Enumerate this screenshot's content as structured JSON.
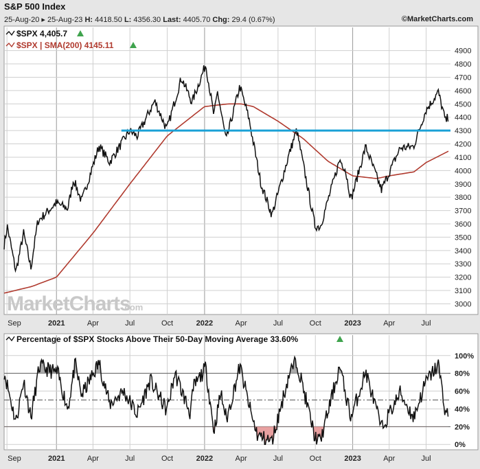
{
  "header": {
    "title": "S&P 500 Index",
    "date_range": "25-Aug-20 ▸ 25-Aug-23",
    "hi_label": "H:",
    "hi": "4418.50",
    "lo_label": "L:",
    "lo": "4356.30",
    "last_label": "Last:",
    "last": "4405.70",
    "chg_label": "Chg:",
    "chg": "29.4 (0.67%)",
    "copyright": "©MarketCharts.com"
  },
  "watermark": "MarketCharts",
  "watermark_suffix": ".com",
  "colors": {
    "price": "#111111",
    "sma": "#b03a2e",
    "hline": "#1aa1d6",
    "grid": "#cfcfcf",
    "up": "#3fa34d",
    "overbought_fill": "#a9a9a9",
    "oversold_fill": "#e8a0a0"
  },
  "chart_data": [
    {
      "type": "line",
      "legend": [
        {
          "label": "$SPX 4,405.7",
          "color": "#111111"
        },
        {
          "label": "$SPX | SMA(200) 4145.11",
          "color": "#b03a2e"
        }
      ],
      "x_tick_labels": [
        "Sep",
        "2021",
        "Apr",
        "Jul",
        "Oct",
        "2022",
        "Apr",
        "Jul",
        "Oct",
        "2023",
        "Apr",
        "Jul"
      ],
      "y_tick_labels": [
        "3000",
        "3100",
        "3200",
        "3300",
        "3400",
        "3500",
        "3600",
        "3700",
        "3800",
        "3900",
        "4000",
        "4100",
        "4200",
        "4300",
        "4400",
        "4500",
        "4600",
        "4700",
        "4800",
        "4900"
      ],
      "ylim": [
        2920,
        4960
      ],
      "horizontal_line": 4300,
      "series": [
        {
          "name": "$SPX",
          "x": [
            "2020-08-25",
            "2020-09-02",
            "2020-09-23",
            "2020-10-12",
            "2020-10-30",
            "2020-11-16",
            "2020-12-31",
            "2021-01-29",
            "2021-02-12",
            "2021-03-04",
            "2021-04-16",
            "2021-05-12",
            "2021-06-30",
            "2021-07-19",
            "2021-08-31",
            "2021-09-30",
            "2021-11-05",
            "2021-12-01",
            "2022-01-04",
            "2022-01-24",
            "2022-02-02",
            "2022-02-23",
            "2022-03-29",
            "2022-04-20",
            "2022-05-20",
            "2022-06-16",
            "2022-07-29",
            "2022-08-16",
            "2022-09-30",
            "2022-10-13",
            "2022-11-30",
            "2022-12-13",
            "2022-12-28",
            "2023-02-02",
            "2023-03-13",
            "2023-04-28",
            "2023-05-31",
            "2023-06-30",
            "2023-07-31",
            "2023-08-18",
            "2023-08-25"
          ],
          "y": [
            3443,
            3580,
            3240,
            3530,
            3270,
            3620,
            3756,
            3714,
            3934,
            3768,
            4185,
            4063,
            4297,
            4258,
            4522,
            4307,
            4697,
            4513,
            4796,
            4410,
            4589,
            4225,
            4632,
            4395,
            3901,
            3667,
            4130,
            4305,
            3586,
            3577,
            4080,
            4019,
            3783,
            4179,
            3855,
            4169,
            4180,
            4450,
            4588,
            4370,
            4405
          ]
        },
        {
          "name": "$SPX | SMA(200)",
          "x": [
            "2020-08-25",
            "2020-11-01",
            "2021-01-01",
            "2021-04-01",
            "2021-07-01",
            "2021-10-01",
            "2022-01-01",
            "2022-03-01",
            "2022-04-01",
            "2022-05-01",
            "2022-07-01",
            "2022-09-01",
            "2022-11-01",
            "2023-01-01",
            "2023-03-01",
            "2023-04-01",
            "2023-06-01",
            "2023-07-01",
            "2023-08-25"
          ],
          "y": [
            3080,
            3130,
            3200,
            3530,
            3900,
            4260,
            4480,
            4500,
            4500,
            4480,
            4370,
            4240,
            4070,
            3960,
            3940,
            3960,
            3990,
            4060,
            4145
          ]
        }
      ]
    },
    {
      "type": "line",
      "legend": [
        {
          "label": "Percentage of $SPX Stocks Above Their 50-Day Moving Average 33.60%",
          "color": "#111111"
        }
      ],
      "x_tick_labels": [
        "Sep",
        "2021",
        "Apr",
        "Jul",
        "Oct",
        "2022",
        "Apr",
        "Jul",
        "Oct",
        "2023",
        "Apr",
        "Jul"
      ],
      "y_tick_labels": [
        "0%",
        "20%",
        "40%",
        "60%",
        "80%",
        "100%"
      ],
      "ylim": [
        -6,
        106
      ],
      "reference_lines": [
        80,
        50,
        20
      ],
      "series": [
        {
          "name": "Percentage of $SPX Stocks Above Their 50-Day Moving Average",
          "x": [
            "2020-08-25",
            "2020-09-23",
            "2020-10-12",
            "2020-10-30",
            "2020-11-20",
            "2021-01-04",
            "2021-01-29",
            "2021-02-16",
            "2021-03-04",
            "2021-04-16",
            "2021-05-12",
            "2021-06-15",
            "2021-07-19",
            "2021-08-20",
            "2021-09-30",
            "2021-10-20",
            "2021-11-26",
            "2021-12-06",
            "2022-01-04",
            "2022-01-24",
            "2022-02-10",
            "2022-02-24",
            "2022-03-29",
            "2022-04-28",
            "2022-05-12",
            "2022-06-16",
            "2022-07-29",
            "2022-08-16",
            "2022-09-30",
            "2022-10-13",
            "2022-11-30",
            "2022-12-13",
            "2022-12-28",
            "2023-02-02",
            "2023-03-13",
            "2023-04-28",
            "2023-05-31",
            "2023-06-30",
            "2023-07-31",
            "2023-08-18",
            "2023-08-25"
          ],
          "y": [
            82,
            25,
            72,
            30,
            88,
            80,
            40,
            90,
            55,
            92,
            45,
            60,
            34,
            72,
            38,
            80,
            36,
            65,
            86,
            15,
            58,
            28,
            88,
            30,
            10,
            3,
            80,
            94,
            8,
            3,
            88,
            60,
            30,
            82,
            18,
            58,
            30,
            70,
            90,
            35,
            34
          ]
        }
      ]
    }
  ]
}
